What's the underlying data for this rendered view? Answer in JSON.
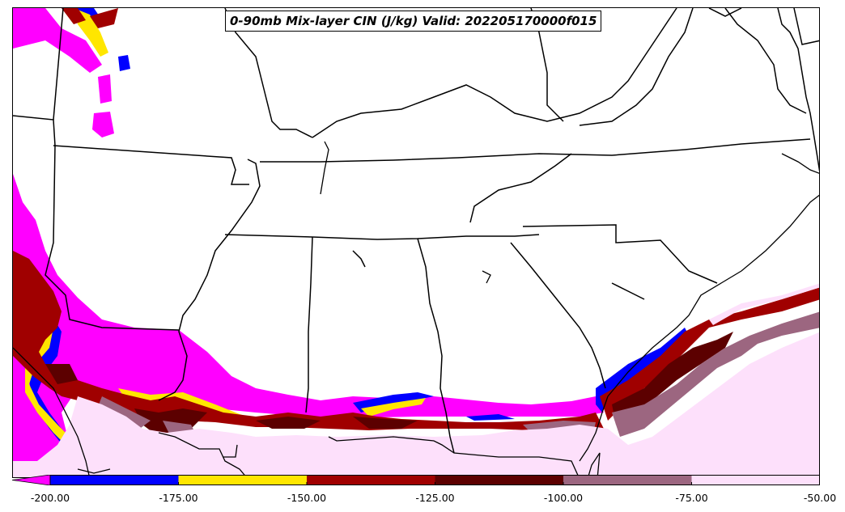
{
  "map": {
    "title": "0-90mb Mix-layer CIN (J/kg) Valid: 202205170000f015"
  },
  "colorbar": {
    "colors": [
      "#0000ff",
      "#ffe600",
      "#a00000",
      "#5c0000",
      "#9c6680",
      "#fde0fb"
    ],
    "tick_labels": [
      "-200.00",
      "-175.00",
      "-150.00",
      "-125.00",
      "-100.00",
      "-75.00",
      "-50.00"
    ],
    "extend_low_color": "#ff00ff"
  },
  "palette": {
    "magenta": "#ff00ff",
    "blue": "#0000ff",
    "yellow": "#ffe600",
    "red": "#a00000",
    "darkred": "#5c0000",
    "mauve": "#9c6680",
    "pink": "#fde0fb"
  }
}
